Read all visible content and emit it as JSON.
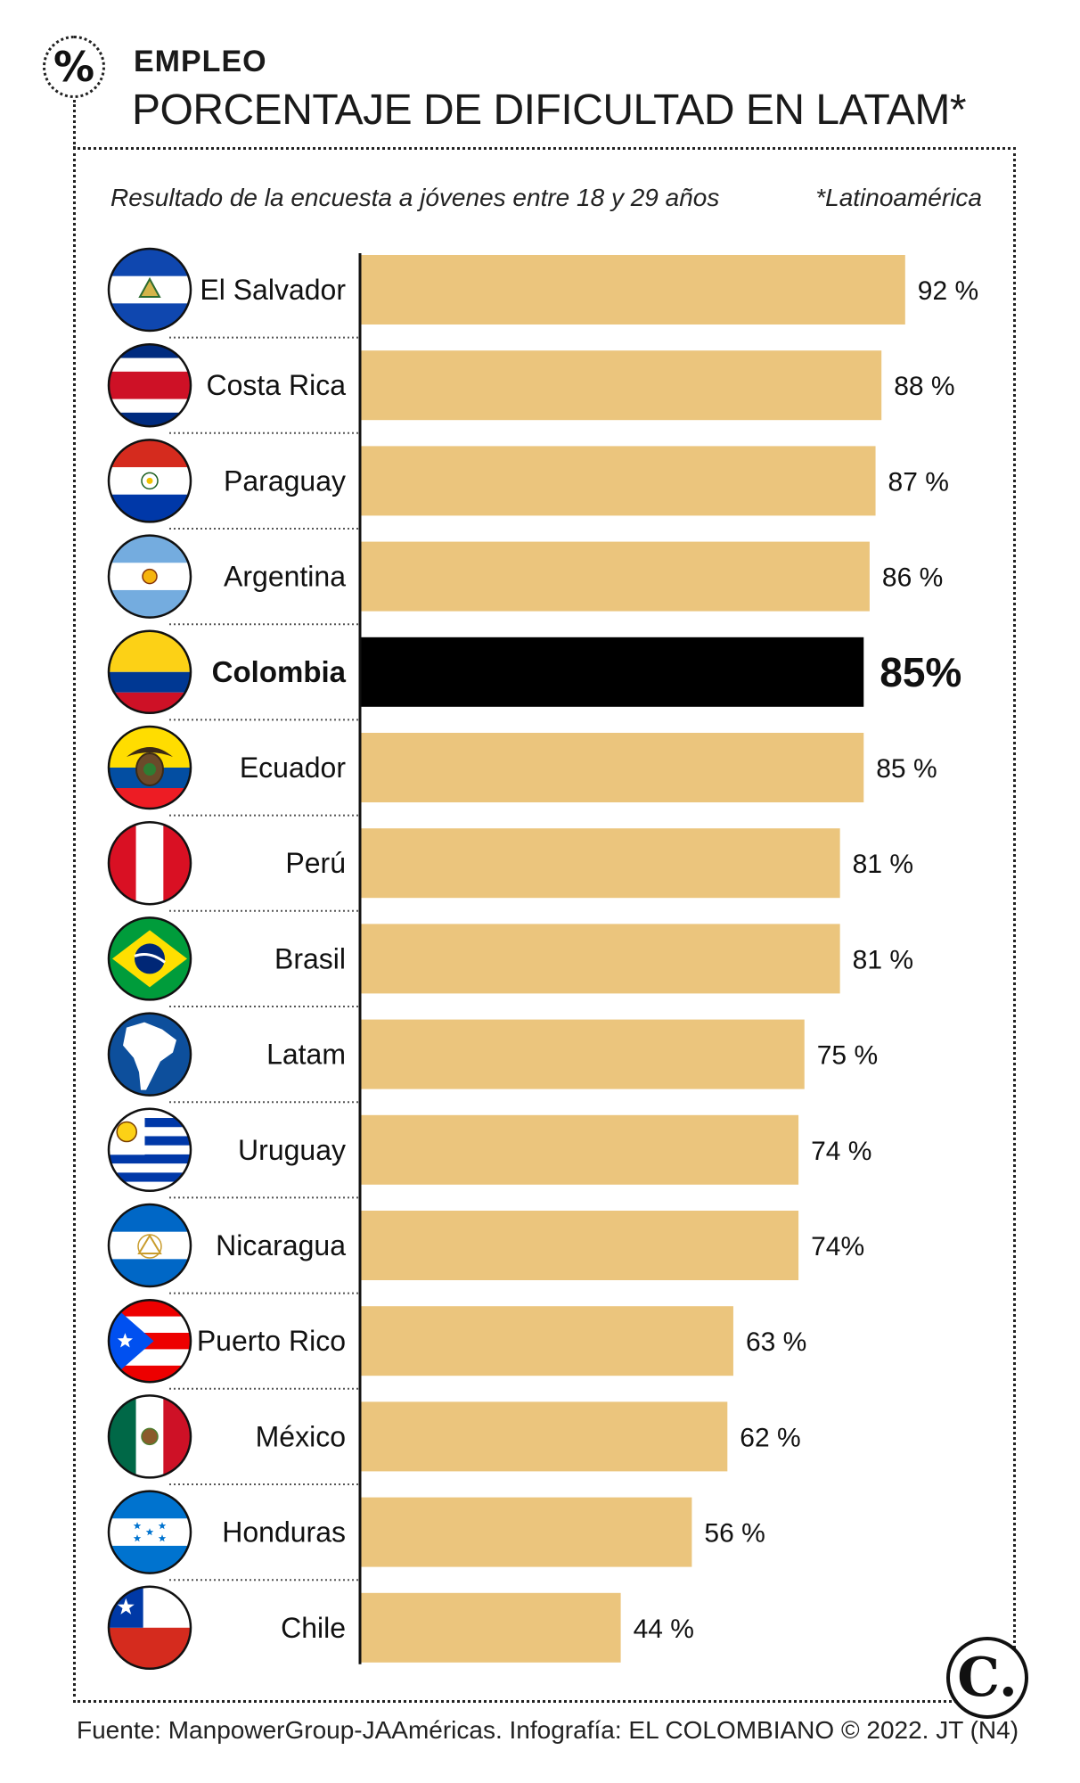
{
  "header": {
    "badge_symbol": "%",
    "section": "EMPLEO",
    "title": "PORCENTAJE DE DIFICULTAD EN LATAM*",
    "subtitle": "Resultado de la encuesta a jóvenes entre 18 y 29 años",
    "footnote": "*Latinoamérica"
  },
  "footer": {
    "source": "Fuente: ManpowerGroup-JAAméricas. Infografía: EL COLOMBIANO © 2022. JT (N4)",
    "logo_letter": "C."
  },
  "colors": {
    "bar": "#ebc57d",
    "highlight_bar": "#000000",
    "axis": "#111111",
    "separator": "#555555"
  },
  "chart_data": {
    "type": "bar",
    "orientation": "horizontal",
    "title": "PORCENTAJE DE DIFICULTAD EN LATAM*",
    "subtitle": "Resultado de la encuesta a jóvenes entre 18 y 29 años",
    "xlabel": "",
    "ylabel": "",
    "xlim": [
      0,
      100
    ],
    "grid": false,
    "legend": "none",
    "categories": [
      "El Salvador",
      "Costa Rica",
      "Paraguay",
      "Argentina",
      "Colombia",
      "Ecuador",
      "Perú",
      "Brasil",
      "Latam",
      "Uruguay",
      "Nicaragua",
      "Puerto Rico",
      "México",
      "Honduras",
      "Chile"
    ],
    "values": [
      92,
      88,
      87,
      86,
      85,
      85,
      81,
      81,
      75,
      74,
      74,
      63,
      62,
      56,
      44
    ],
    "labels": [
      "92 %",
      "88 %",
      "87 %",
      "86 %",
      "85%",
      "85 %",
      "81 %",
      "81 %",
      "75 %",
      "74 %",
      "74%",
      "63 %",
      "62 %",
      "56 %",
      "44 %"
    ],
    "highlight": "Colombia",
    "flags": [
      "el-salvador-flag-icon",
      "costa-rica-flag-icon",
      "paraguay-flag-icon",
      "argentina-flag-icon",
      "colombia-flag-icon",
      "ecuador-flag-icon",
      "peru-flag-icon",
      "brazil-flag-icon",
      "south-america-map-icon",
      "uruguay-flag-icon",
      "nicaragua-flag-icon",
      "puerto-rico-flag-icon",
      "mexico-flag-icon",
      "honduras-flag-icon",
      "chile-flag-icon"
    ]
  }
}
